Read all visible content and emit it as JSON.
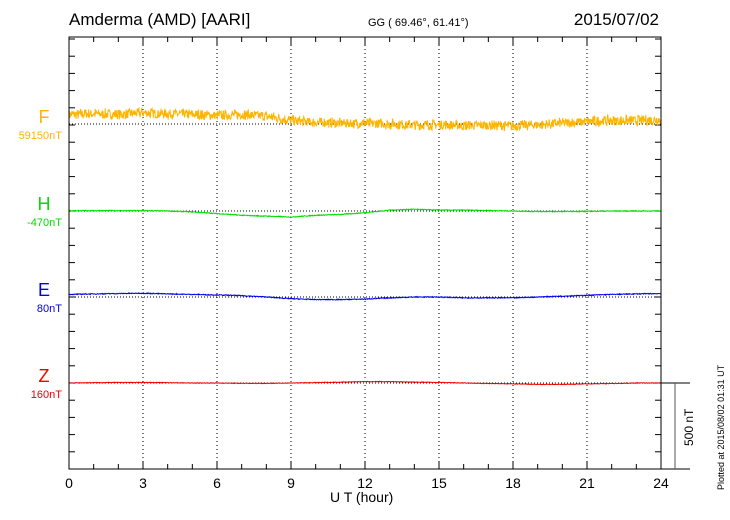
{
  "header": {
    "station": "Amderma (AMD)  [AARI]",
    "coords": "GG ( 69.46°,  61.41°)",
    "date": "2015/07/02"
  },
  "plotted_note": "Plotted at 2015/08/02 01:31  UT",
  "chart_data": {
    "type": "line",
    "title": "Amderma (AMD)  [AARI]",
    "xlabel": "U T (hour)",
    "xlim": [
      0,
      24
    ],
    "xticks": [
      "0",
      "3",
      "6",
      "9",
      "12",
      "15",
      "18",
      "21",
      "24"
    ],
    "scale_bar_label": "500 nT",
    "scale_bar_nT": 500,
    "grid": true,
    "hours": [
      0,
      1,
      2,
      3,
      4,
      5,
      6,
      7,
      8,
      9,
      10,
      11,
      12,
      13,
      14,
      15,
      16,
      17,
      18,
      19,
      20,
      21,
      22,
      23,
      24
    ],
    "series": [
      {
        "name": "F",
        "baseline_label": "59150nT",
        "color": "#ffb400",
        "noise_nT": 35,
        "values": [
          55,
          60,
          55,
          65,
          60,
          55,
          50,
          55,
          45,
          20,
          10,
          5,
          5,
          0,
          -5,
          -5,
          -8,
          -8,
          -10,
          -5,
          5,
          15,
          20,
          20,
          25
        ]
      },
      {
        "name": "H",
        "baseline_label": "-470nT",
        "color": "#00dd00",
        "noise_nT": 3,
        "values": [
          2,
          2,
          2,
          2,
          0,
          -5,
          -15,
          -25,
          -30,
          -35,
          -25,
          -20,
          -10,
          5,
          10,
          5,
          5,
          3,
          0,
          -3,
          -3,
          -2,
          0,
          0,
          0
        ]
      },
      {
        "name": "E",
        "baseline_label": "80nT",
        "color": "#0000ee",
        "noise_nT": 3,
        "values": [
          15,
          18,
          20,
          22,
          18,
          15,
          12,
          8,
          0,
          -10,
          -15,
          -15,
          -12,
          -5,
          0,
          0,
          -5,
          -5,
          -5,
          0,
          5,
          10,
          15,
          18,
          20
        ]
      },
      {
        "name": "Z",
        "baseline_label": "160nT",
        "color": "#ee0000",
        "noise_nT": 2,
        "values": [
          0,
          2,
          3,
          3,
          2,
          0,
          0,
          -2,
          -2,
          0,
          2,
          5,
          8,
          8,
          5,
          3,
          0,
          -3,
          -5,
          -8,
          -8,
          -5,
          -3,
          0,
          0
        ]
      }
    ]
  }
}
